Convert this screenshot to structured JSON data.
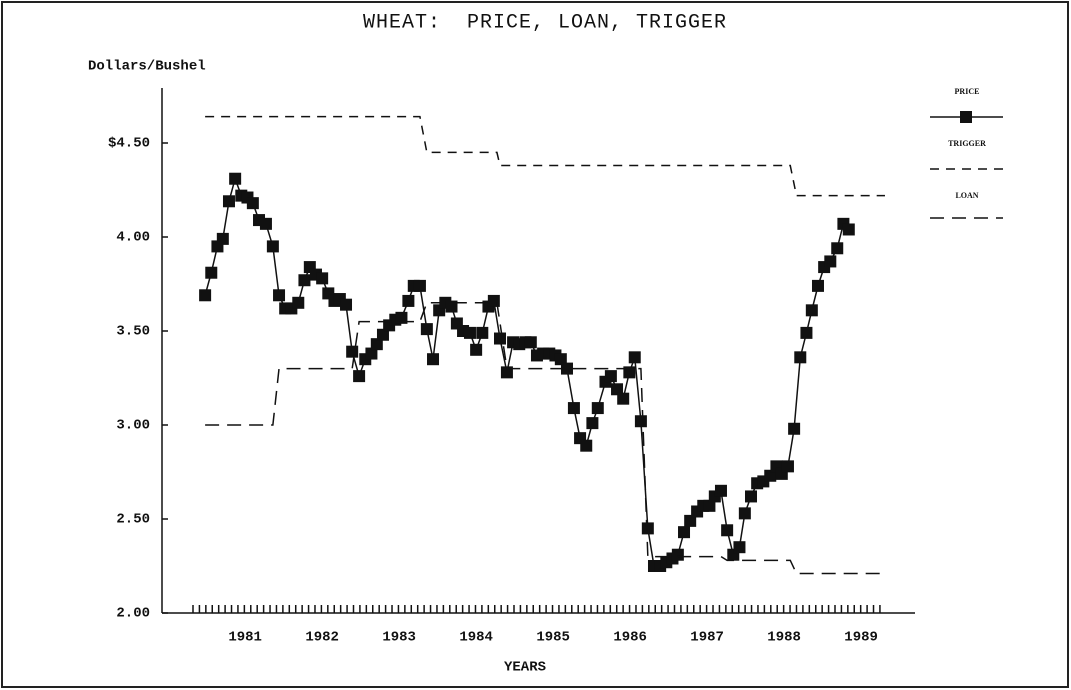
{
  "chart_data": {
    "type": "line",
    "title": "WHEAT:  PRICE, LOAN, TRIGGER",
    "y_label": "Dollars/Bushel",
    "x_label": "YEARS",
    "xlim": [
      1979.92,
      1989.7
    ],
    "ylim": [
      2.0,
      4.75
    ],
    "xticks": [
      1981,
      1982,
      1983,
      1984,
      1985,
      1986,
      1987,
      1988,
      1989
    ],
    "yticks": [
      {
        "value": 2.0,
        "label": "2.00"
      },
      {
        "value": 2.5,
        "label": "2.50"
      },
      {
        "value": 3.0,
        "label": "3.00"
      },
      {
        "value": 3.5,
        "label": "3.50"
      },
      {
        "value": 4.0,
        "label": "4.00"
      },
      {
        "value": 4.5,
        "label": "$4.50"
      }
    ],
    "legend": "right",
    "series": [
      {
        "name": "PRICE",
        "color": "#111111",
        "style": "solid",
        "marker": "square",
        "x": [
          1980.48,
          1980.56,
          1980.64,
          1980.71,
          1980.79,
          1980.87,
          1980.95,
          1981.03,
          1981.1,
          1981.18,
          1981.27,
          1981.36,
          1981.44,
          1981.52,
          1981.6,
          1981.69,
          1981.77,
          1981.84,
          1981.92,
          1982.0,
          1982.08,
          1982.16,
          1982.23,
          1982.31,
          1982.39,
          1982.48,
          1982.56,
          1982.64,
          1982.71,
          1982.79,
          1982.87,
          1982.95,
          1983.03,
          1983.12,
          1983.19,
          1983.27,
          1983.36,
          1983.44,
          1983.52,
          1983.6,
          1983.68,
          1983.75,
          1983.83,
          1983.92,
          1984.0,
          1984.08,
          1984.16,
          1984.23,
          1984.31,
          1984.4,
          1984.48,
          1984.56,
          1984.64,
          1984.71,
          1984.79,
          1984.87,
          1984.95,
          1985.03,
          1985.1,
          1985.18,
          1985.27,
          1985.35,
          1985.43,
          1985.51,
          1985.58,
          1985.68,
          1985.75,
          1985.83,
          1985.91,
          1985.99,
          1986.06,
          1986.14,
          1986.23,
          1986.31,
          1986.39,
          1986.47,
          1986.55,
          1986.62,
          1986.7,
          1986.78,
          1986.87,
          1986.95,
          1987.03,
          1987.1,
          1987.18,
          1987.26,
          1987.34,
          1987.42,
          1987.49,
          1987.57,
          1987.65,
          1987.73,
          1987.82,
          1987.9,
          1987.97,
          1988.05,
          1988.13,
          1988.21,
          1988.29,
          1988.36,
          1988.44,
          1988.52,
          1988.6,
          1988.69,
          1988.77,
          1988.84
        ],
        "values": [
          3.69,
          3.81,
          3.95,
          3.99,
          4.19,
          4.31,
          4.22,
          4.21,
          4.18,
          4.09,
          4.07,
          3.95,
          3.69,
          3.62,
          3.62,
          3.65,
          3.77,
          3.84,
          3.8,
          3.78,
          3.7,
          3.66,
          3.67,
          3.64,
          3.39,
          3.26,
          3.35,
          3.38,
          3.43,
          3.48,
          3.53,
          3.56,
          3.57,
          3.66,
          3.74,
          3.74,
          3.51,
          3.35,
          3.61,
          3.65,
          3.63,
          3.54,
          3.5,
          3.49,
          3.4,
          3.49,
          3.63,
          3.66,
          3.46,
          3.28,
          3.44,
          3.43,
          3.44,
          3.44,
          3.37,
          3.38,
          3.38,
          3.37,
          3.35,
          3.3,
          3.09,
          2.93,
          2.89,
          3.01,
          3.09,
          3.23,
          3.26,
          3.19,
          3.14,
          3.28,
          3.36,
          3.02,
          2.45,
          2.25,
          2.25,
          2.27,
          2.29,
          2.31,
          2.43,
          2.49,
          2.54,
          2.57,
          2.57,
          2.62,
          2.65,
          2.44,
          2.31,
          2.35,
          2.53,
          2.62,
          2.69,
          2.7,
          2.73,
          2.78,
          2.74,
          2.78,
          2.98,
          3.36,
          3.49,
          3.61,
          3.74,
          3.84,
          3.87,
          3.94,
          4.07,
          4.04
        ]
      },
      {
        "name": "TRIGGER",
        "color": "#111111",
        "style": "short-dash",
        "x": [
          1980.48,
          1983.27,
          1983.36,
          1984.27,
          1984.31,
          1988.08,
          1988.16,
          1989.31
        ],
        "values": [
          4.64,
          4.64,
          4.45,
          4.45,
          4.38,
          4.38,
          4.22,
          4.22
        ]
      },
      {
        "name": "LOAN",
        "color": "#111111",
        "style": "long-dash",
        "x": [
          1980.48,
          1981.36,
          1981.44,
          1982.39,
          1982.48,
          1983.27,
          1983.36,
          1984.27,
          1984.4,
          1986.14,
          1986.23,
          1987.18,
          1987.26,
          1988.08,
          1988.16,
          1989.31
        ],
        "values": [
          3.0,
          3.0,
          3.3,
          3.3,
          3.55,
          3.55,
          3.65,
          3.65,
          3.3,
          3.3,
          2.3,
          2.3,
          2.28,
          2.28,
          2.21,
          2.21
        ]
      }
    ]
  }
}
